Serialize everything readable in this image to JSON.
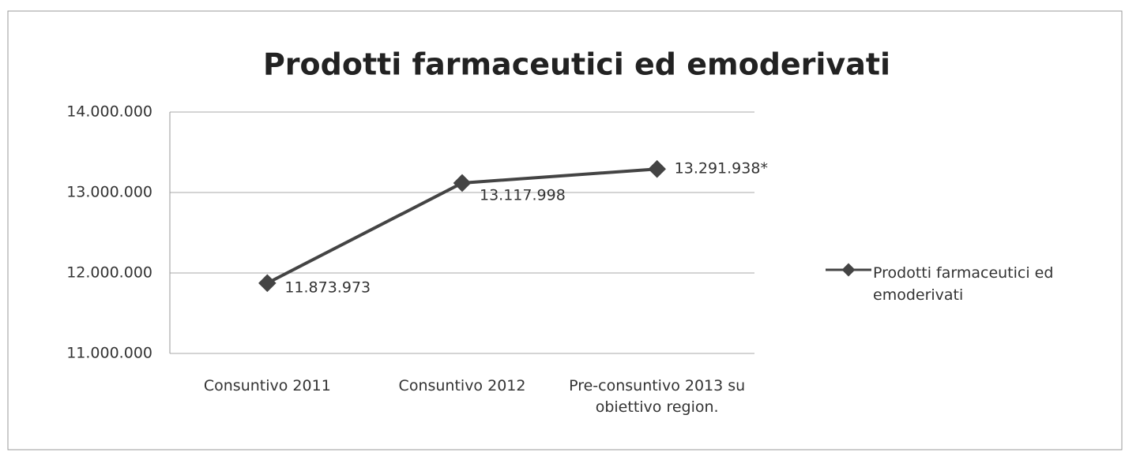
{
  "chart_data": {
    "type": "line",
    "title": "Prodotti farmaceutici ed emoderivati",
    "categories": [
      "Consuntivo 2011",
      "Consuntivo 2012",
      "Pre-consuntivo 2013 su obiettivo region."
    ],
    "series": [
      {
        "name": "Prodotti farmaceutici ed emoderivati",
        "color": "#444444",
        "values": [
          11873973,
          13117998,
          13291938
        ],
        "value_labels": [
          "11.873.973",
          "13.117.998",
          "13.291.938*"
        ]
      }
    ],
    "ylim": [
      11000000,
      14000000
    ],
    "yticks": [
      {
        "value": 11000000,
        "label": "11.000.000"
      },
      {
        "value": 12000000,
        "label": "12.000.000"
      },
      {
        "value": 13000000,
        "label": "13.000.000"
      },
      {
        "value": 14000000,
        "label": "14.000.000"
      }
    ],
    "grid": true,
    "legend": "right"
  }
}
